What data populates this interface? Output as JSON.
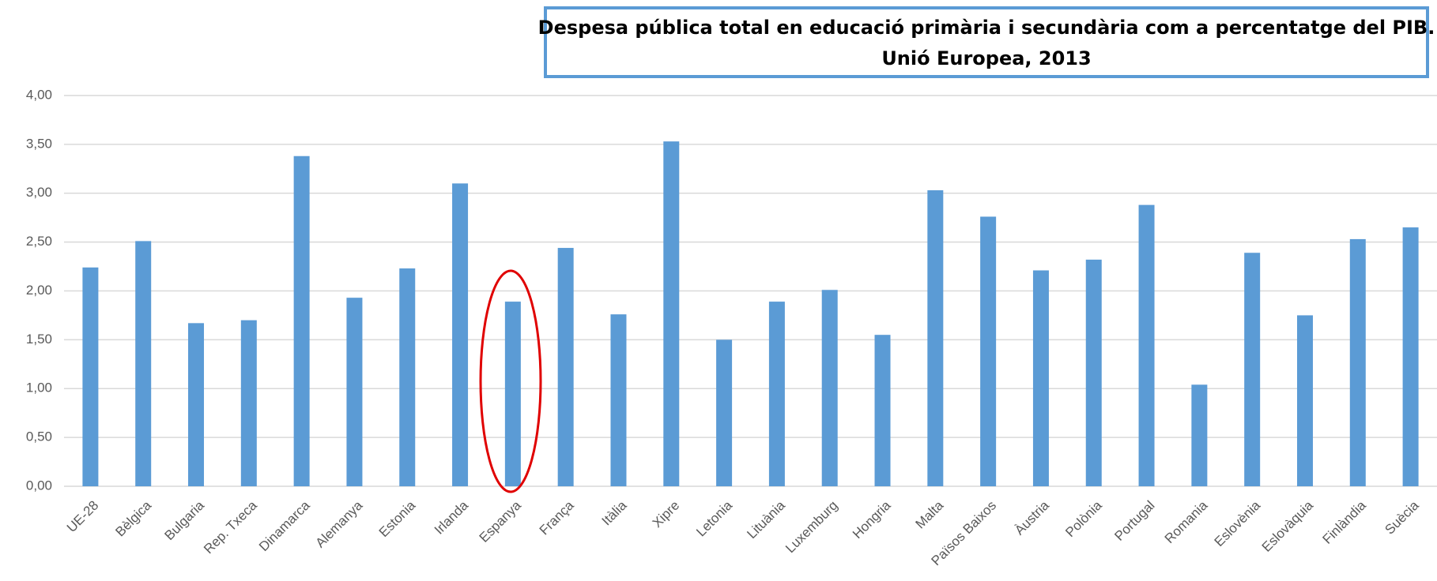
{
  "chart_data": {
    "type": "bar",
    "title": [
      "Despesa pública total en educació primària i secundària com a percentatge del PIB.",
      "Unió Europea, 2013"
    ],
    "categories": [
      "UE-28",
      "Bèlgica",
      "Bulgaria",
      "Rep. Txeca",
      "Dinamarca",
      "Alemanya",
      "Estonia",
      "Irlanda",
      "Espanya",
      "França",
      "Itàlia",
      "Xipre",
      "Letonia",
      "Lituània",
      "Luxemburg",
      "Hongria",
      "Malta",
      "Països Baixos",
      "Àustria",
      "Polònia",
      "Portugal",
      "Romania",
      "Eslovènia",
      "Eslovàquia",
      "Finlàndia",
      "Suècia"
    ],
    "values": [
      2.24,
      2.51,
      1.67,
      1.7,
      3.38,
      1.93,
      2.23,
      3.1,
      1.89,
      2.44,
      1.76,
      3.53,
      1.5,
      1.89,
      2.01,
      1.55,
      3.03,
      2.76,
      2.21,
      2.32,
      2.88,
      1.04,
      2.39,
      1.75,
      2.53,
      2.65
    ],
    "color": "#5b9bd5",
    "ylim": [
      0,
      4
    ],
    "yticks": [
      {
        "value": 0,
        "label": "0,00"
      },
      {
        "value": 0.5,
        "label": "0,50"
      },
      {
        "value": 1,
        "label": "1,00"
      },
      {
        "value": 1.5,
        "label": "1,50"
      },
      {
        "value": 2,
        "label": "2,00"
      },
      {
        "value": 2.5,
        "label": "2,50"
      },
      {
        "value": 3,
        "label": "3,00"
      },
      {
        "value": 3.5,
        "label": "3,50"
      },
      {
        "value": 4,
        "label": "4,00"
      }
    ],
    "grid": true
  }
}
